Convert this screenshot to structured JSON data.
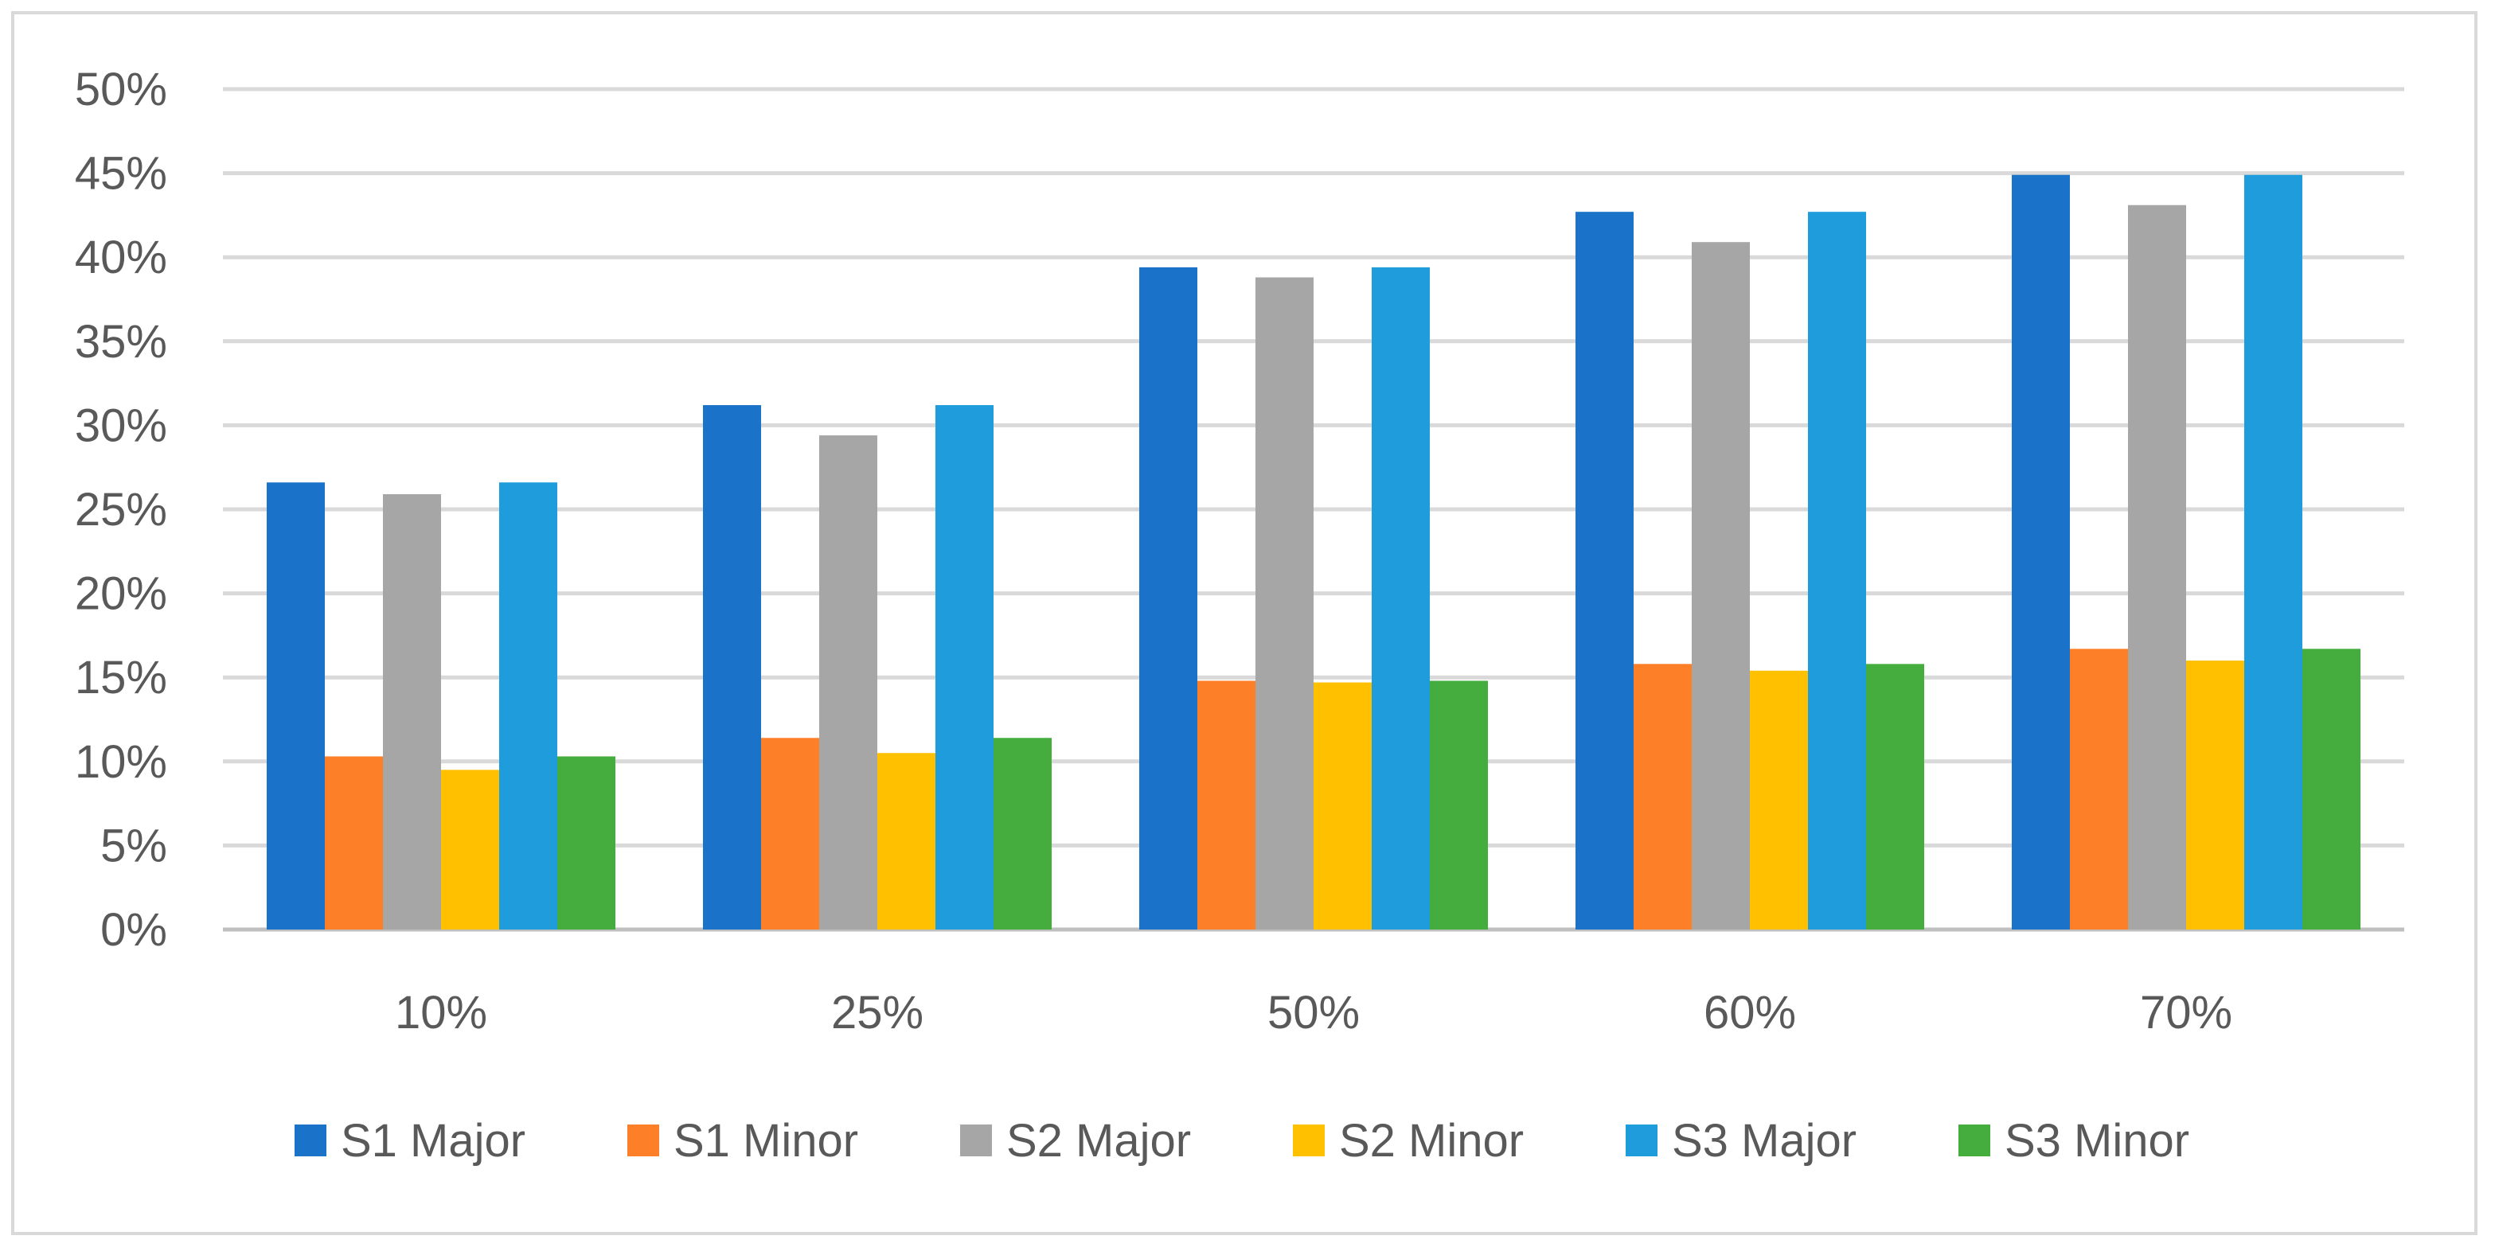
{
  "chart_data": {
    "type": "bar",
    "title": "",
    "xlabel": "",
    "ylabel": "",
    "categories": [
      "10%",
      "25%",
      "50%",
      "60%",
      "70%"
    ],
    "y_ticks": [
      "0%",
      "5%",
      "10%",
      "15%",
      "20%",
      "25%",
      "30%",
      "35%",
      "40%",
      "45%",
      "50%"
    ],
    "ylim": [
      0,
      50
    ],
    "grid": true,
    "legend_position": "bottom",
    "series": [
      {
        "name": "S1 Major",
        "color": "#1a73c8",
        "values": [
          26.6,
          31.2,
          39.4,
          42.7,
          44.9
        ]
      },
      {
        "name": "S1 Minor",
        "color": "#fd7f28",
        "values": [
          10.3,
          11.4,
          14.8,
          15.8,
          16.7
        ]
      },
      {
        "name": "S2 Major",
        "color": "#a6a6a6",
        "values": [
          25.9,
          29.4,
          38.8,
          40.9,
          43.1
        ]
      },
      {
        "name": "S2 Minor",
        "color": "#ffc000",
        "values": [
          9.5,
          10.5,
          14.7,
          15.4,
          16.0
        ]
      },
      {
        "name": "S3 Major",
        "color": "#1e9cdc",
        "values": [
          26.6,
          31.2,
          39.4,
          42.7,
          44.9
        ]
      },
      {
        "name": "S3 Minor",
        "color": "#44ad3d",
        "values": [
          10.3,
          11.4,
          14.8,
          15.8,
          16.7
        ]
      }
    ]
  }
}
